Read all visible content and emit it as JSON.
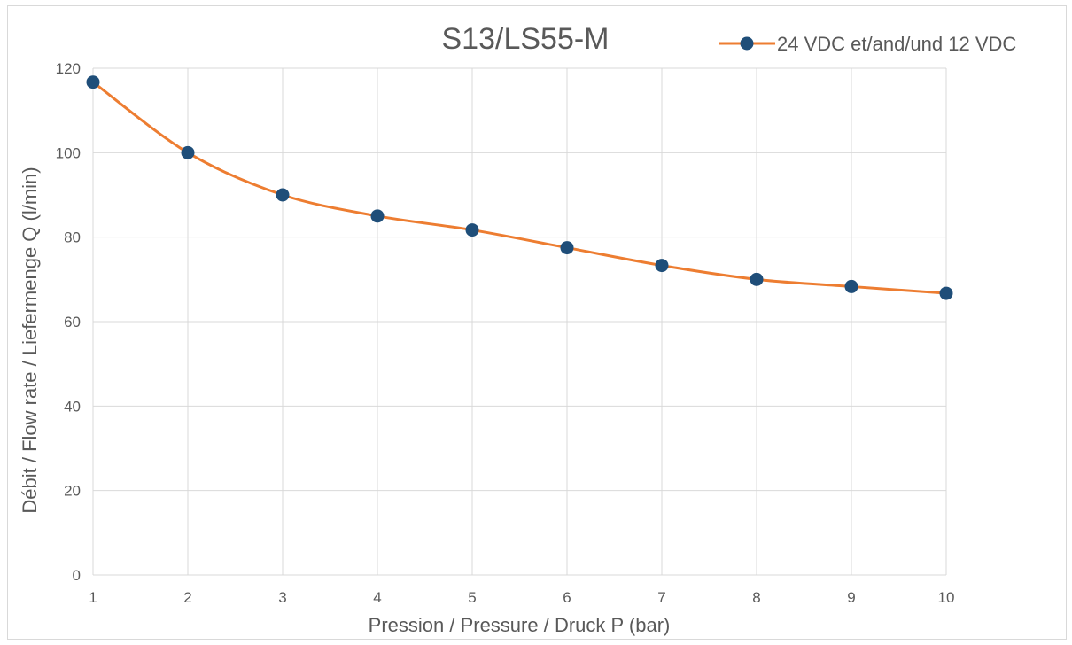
{
  "chart_data": {
    "type": "line",
    "title": "S13/LS55-M",
    "xlabel": "Pression / Pressure / Druck P (bar)",
    "ylabel": "Débit / Flow rate / Liefermenge Q (l/min)",
    "x": [
      1,
      2,
      3,
      4,
      5,
      6,
      7,
      8,
      9,
      10
    ],
    "xlim": [
      1,
      10
    ],
    "ylim": [
      0,
      120
    ],
    "x_ticks": [
      "1",
      "2",
      "3",
      "4",
      "5",
      "6",
      "7",
      "8",
      "9",
      "10"
    ],
    "y_ticks": [
      "0",
      "20",
      "40",
      "60",
      "80",
      "100",
      "120"
    ],
    "grid": true,
    "legend_position": "top-right",
    "series": [
      {
        "name": "24 VDC et/and/und 12 VDC",
        "values": [
          116.7,
          100,
          90,
          85,
          81.7,
          77.5,
          73.3,
          70,
          68.3,
          66.7
        ],
        "line_color": "#ed7d31",
        "marker_color": "#1f4e79"
      }
    ],
    "gridline_color": "#d9d9d9"
  }
}
